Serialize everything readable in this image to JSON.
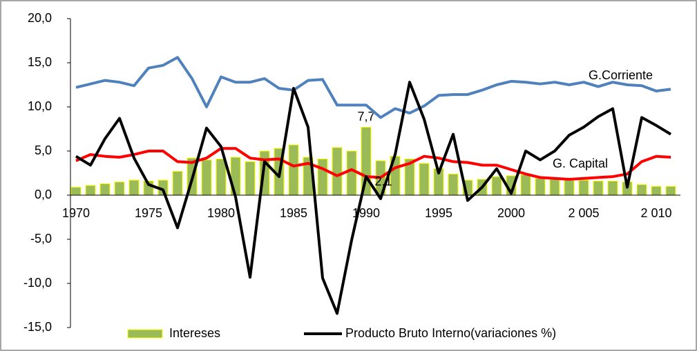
{
  "chart_data": {
    "type": "bar_line",
    "categories": [
      "1970",
      null,
      null,
      null,
      null,
      "1975",
      null,
      null,
      null,
      null,
      "1980",
      null,
      null,
      null,
      null,
      "1985",
      null,
      null,
      null,
      null,
      "1990",
      null,
      null,
      null,
      null,
      "1995",
      null,
      null,
      null,
      null,
      "2000",
      null,
      null,
      null,
      null,
      "2 005",
      null,
      null,
      null,
      null,
      "2 010",
      null
    ],
    "ylim": [
      -15,
      20
    ],
    "yticks": [
      {
        "value": -15,
        "label": "-15,0"
      },
      {
        "value": -10,
        "label": "-10,0"
      },
      {
        "value": -5,
        "label": "-5,0"
      },
      {
        "value": 0,
        "label": "0,0"
      },
      {
        "value": 5,
        "label": "5,0"
      },
      {
        "value": 10,
        "label": "10,0"
      },
      {
        "value": 15,
        "label": "15,0"
      },
      {
        "value": 20,
        "label": "20,0"
      }
    ],
    "grid": false,
    "legend": "bottom",
    "series": [
      {
        "name": "Intereses",
        "type": "bar",
        "color": "#9bbb59",
        "edge_color": "#ffff00",
        "values": [
          0.9,
          1.1,
          1.3,
          1.5,
          1.7,
          1.6,
          1.7,
          2.7,
          4.2,
          4.0,
          4.1,
          4.3,
          3.8,
          5.0,
          5.3,
          5.7,
          4.3,
          4.1,
          5.4,
          5.0,
          7.7,
          3.9,
          4.4,
          4.1,
          3.6,
          3.0,
          2.4,
          1.7,
          1.8,
          2.1,
          2.2,
          2.3,
          1.9,
          1.8,
          1.7,
          1.7,
          1.6,
          1.6,
          1.5,
          1.2,
          1.0,
          1.0
        ],
        "value_labels": [
          null,
          null,
          null,
          null,
          null,
          null,
          null,
          null,
          null,
          null,
          null,
          null,
          null,
          null,
          null,
          null,
          null,
          null,
          null,
          null,
          "7,7",
          null,
          null,
          null,
          null,
          null,
          null,
          null,
          null,
          null,
          null,
          null,
          null,
          null,
          null,
          null,
          null,
          null,
          null,
          null,
          null,
          null
        ]
      },
      {
        "name": "G.Corriente",
        "type": "line",
        "color": "#4f81bd",
        "direct_label": true,
        "values": [
          12.2,
          12.6,
          13.0,
          12.8,
          12.4,
          14.4,
          14.7,
          15.6,
          13.2,
          10.0,
          13.4,
          12.8,
          12.8,
          13.2,
          12.1,
          11.9,
          13.0,
          13.1,
          10.2,
          10.2,
          10.2,
          8.8,
          9.8,
          9.3,
          10.1,
          11.3,
          11.4,
          11.4,
          11.9,
          12.5,
          12.9,
          12.8,
          12.6,
          12.8,
          12.5,
          12.8,
          12.3,
          12.8,
          12.5,
          12.4,
          11.8,
          12.0
        ]
      },
      {
        "name": "G. Capital",
        "type": "line",
        "color": "#ff0000",
        "direct_label": true,
        "values": [
          3.9,
          4.6,
          4.4,
          4.3,
          4.6,
          5.0,
          5.0,
          3.8,
          3.7,
          4.2,
          5.3,
          5.3,
          4.2,
          4.0,
          4.1,
          3.3,
          3.6,
          3.0,
          2.2,
          2.9,
          2.1,
          2.0,
          3.1,
          3.6,
          4.4,
          4.2,
          3.8,
          3.7,
          3.4,
          3.4,
          2.9,
          2.4,
          2.0,
          1.9,
          1.8,
          1.9,
          2.0,
          2.1,
          2.4,
          3.8,
          4.4,
          4.3
        ]
      },
      {
        "name": "Producto Bruto Interno(variaciones %)",
        "type": "line",
        "color": "#000000",
        "values": [
          4.4,
          3.4,
          6.4,
          8.7,
          4.2,
          1.2,
          0.6,
          -3.7,
          1.8,
          7.6,
          5.5,
          -0.2,
          -9.3,
          3.8,
          2.1,
          12.1,
          7.7,
          -9.4,
          -13.4,
          -5.1,
          2.1,
          -0.4,
          4.6,
          12.8,
          8.6,
          2.5,
          6.9,
          -0.6,
          0.9,
          3.0,
          0.2,
          5.0,
          4.0,
          5.0,
          6.8,
          7.7,
          8.9,
          9.8,
          0.9,
          8.8,
          7.9,
          6.9
        ],
        "value_labels": [
          null,
          null,
          null,
          null,
          null,
          null,
          null,
          null,
          null,
          null,
          null,
          null,
          null,
          null,
          null,
          null,
          null,
          null,
          null,
          null,
          "2,1",
          null,
          null,
          null,
          null,
          null,
          null,
          null,
          null,
          null,
          null,
          null,
          null,
          null,
          null,
          null,
          null,
          null,
          null,
          null,
          null,
          null
        ]
      }
    ]
  }
}
